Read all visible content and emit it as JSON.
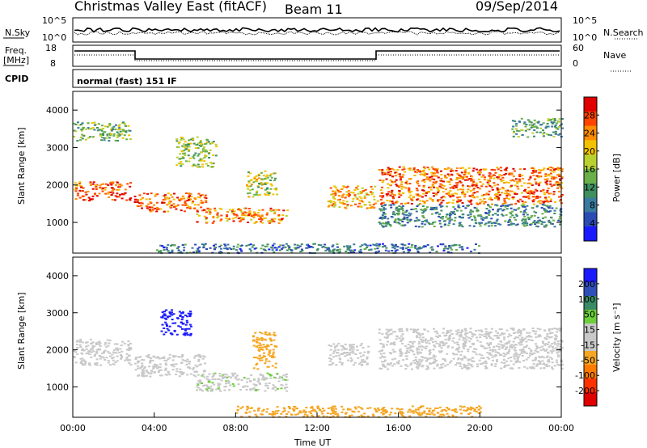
{
  "header": {
    "station": "Christmas Valley East (fitACF)",
    "beam": "Beam 11",
    "date": "09/Sep/2014"
  },
  "noise_panel": {
    "left_label": "N.Sky",
    "right_label": "N.Search",
    "left_ticks": [
      "10^5",
      "10^0"
    ],
    "right_ticks": [
      "10^5",
      "10^0"
    ]
  },
  "freq_panel": {
    "left_label": "Freq.",
    "left_unit": "[MHz]",
    "right_label": "Nave",
    "left_ticks": [
      "18",
      "8"
    ],
    "right_ticks": [
      "60",
      "0"
    ]
  },
  "cpid_panel": {
    "left_label": "CPID",
    "mode": "normal (fast) 151 IF"
  },
  "colors": {
    "power_scale": [
      "#1a1aff",
      "#2c4bb5",
      "#3a7a9e",
      "#3f8f5f",
      "#6ab04a",
      "#b9d12f",
      "#f2c200",
      "#ff8c00",
      "#ff4500",
      "#e00000"
    ],
    "velocity_scale": [
      "#1a1aff",
      "#2e4fb8",
      "#3a8a66",
      "#6ccf3a",
      "#c8c8c8",
      "#c8c8c8",
      "#f5a623",
      "#ff7a00",
      "#ff3300",
      "#e00000"
    ]
  },
  "chart_data": [
    {
      "type": "heatmap",
      "name": "power",
      "ylabel": "Slant Range [km]",
      "colorbar_label": "Power [dB]",
      "colorbar_ticks": [
        "28",
        "24",
        "20",
        "16",
        "12",
        "8",
        "4"
      ],
      "colorbar_range": [
        0,
        30
      ],
      "y_ticks": [
        "4000",
        "3000",
        "2000",
        "1000"
      ],
      "ylim": [
        180,
        4500
      ],
      "xlim_hours": [
        0,
        24
      ],
      "regions": [
        {
          "t": [
            0,
            2.8
          ],
          "r": [
            1600,
            2100
          ],
          "level": 0.85
        },
        {
          "t": [
            0,
            2.8
          ],
          "r": [
            3200,
            3700
          ],
          "level": 0.45
        },
        {
          "t": [
            3,
            6.5
          ],
          "r": [
            1300,
            1800
          ],
          "level": 0.8
        },
        {
          "t": [
            6,
            10.5
          ],
          "r": [
            1000,
            1400
          ],
          "level": 0.75
        },
        {
          "t": [
            5,
            7
          ],
          "r": [
            2500,
            3300
          ],
          "level": 0.5
        },
        {
          "t": [
            8.5,
            10
          ],
          "r": [
            1700,
            2400
          ],
          "level": 0.55
        },
        {
          "t": [
            12.5,
            15
          ],
          "r": [
            1400,
            2000
          ],
          "level": 0.7
        },
        {
          "t": [
            15,
            24
          ],
          "r": [
            1500,
            2500
          ],
          "level": 0.8
        },
        {
          "t": [
            15,
            24
          ],
          "r": [
            900,
            1500
          ],
          "level": 0.3
        },
        {
          "t": [
            21.5,
            24
          ],
          "r": [
            3300,
            3800
          ],
          "level": 0.4
        },
        {
          "t": [
            4,
            20
          ],
          "r": [
            200,
            450
          ],
          "level": 0.25
        }
      ]
    },
    {
      "type": "heatmap",
      "name": "velocity",
      "ylabel": "Slant Range [km]",
      "colorbar_label": "Velocity [m s⁻¹]",
      "colorbar_ticks": [
        "200",
        "100",
        "50",
        "15",
        "-15",
        "-50",
        "-100",
        "-200"
      ],
      "colorbar_range": [
        -250,
        250
      ],
      "y_ticks": [
        "4000",
        "3000",
        "2000",
        "1000"
      ],
      "ylim": [
        180,
        4500
      ],
      "xlabel": "Time UT",
      "x_ticks": [
        "00:00",
        "04:00",
        "08:00",
        "12:00",
        "16:00",
        "20:00",
        "00:00"
      ],
      "xlim_hours": [
        0,
        24
      ],
      "regions": [
        {
          "t": [
            0,
            2.8
          ],
          "r": [
            1600,
            2300
          ],
          "vel": 0
        },
        {
          "t": [
            3,
            6.5
          ],
          "r": [
            1300,
            1900
          ],
          "vel": 0
        },
        {
          "t": [
            4.3,
            5.8
          ],
          "r": [
            2400,
            3100
          ],
          "vel": 220
        },
        {
          "t": [
            6,
            10.5
          ],
          "r": [
            900,
            1400
          ],
          "vel": 40
        },
        {
          "t": [
            8.8,
            10
          ],
          "r": [
            1500,
            2500
          ],
          "vel": -80
        },
        {
          "t": [
            12.5,
            14.5
          ],
          "r": [
            1600,
            2200
          ],
          "vel": 30
        },
        {
          "t": [
            15,
            24
          ],
          "r": [
            1500,
            2600
          ],
          "vel": 0
        },
        {
          "t": [
            8,
            20
          ],
          "r": [
            200,
            500
          ],
          "vel": -80
        }
      ]
    }
  ]
}
